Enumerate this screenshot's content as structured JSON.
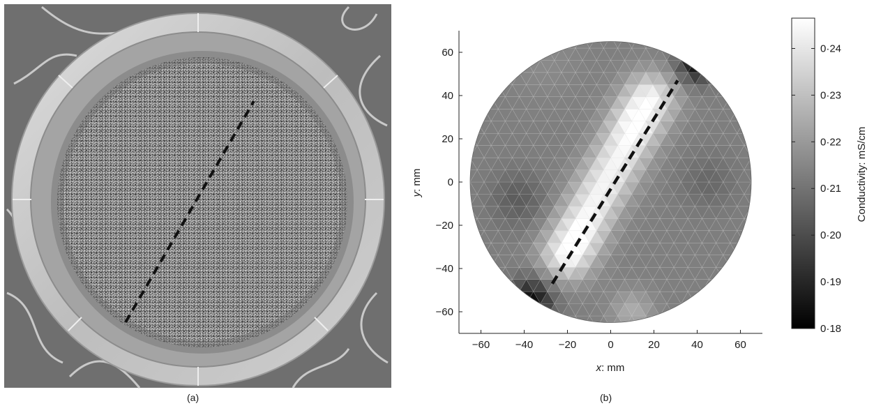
{
  "figure": {
    "panel_a_label": "(a)",
    "panel_b_label": "(b)"
  },
  "chart_data": {
    "type": "heatmap",
    "x": {
      "label_var": "x",
      "label_unit": ": mm",
      "ticks": [
        -60,
        -40,
        -20,
        0,
        20,
        40,
        60
      ],
      "lim": [
        -70,
        70
      ]
    },
    "y": {
      "label_var": "y",
      "label_unit": ": mm",
      "ticks": [
        -60,
        -40,
        -20,
        0,
        20,
        40,
        60
      ],
      "lim": [
        -70,
        70
      ]
    },
    "colorbar": {
      "label": "Conductivity: mS/cm",
      "ticks": [
        "0·18",
        "0·19",
        "0·20",
        "0·21",
        "0·22",
        "0·23",
        "0·24"
      ],
      "tick_values": [
        0.18,
        0.19,
        0.2,
        0.21,
        0.22,
        0.23,
        0.24
      ],
      "range": [
        0.18,
        0.2465
      ],
      "colormap": "gray"
    },
    "domain": {
      "shape": "circle",
      "center": [
        0,
        0
      ],
      "radius": 65
    },
    "crack_line": {
      "from": [
        -27,
        -47
      ],
      "to": [
        31,
        47
      ],
      "style": "dashed",
      "color": "#111111"
    },
    "field": {
      "background": 0.213,
      "features": [
        {
          "kind": "ridge",
          "from": [
            -20,
            -33
          ],
          "to": [
            18,
            38
          ],
          "width": 8.5,
          "amp": 0.031
        },
        {
          "kind": "blob",
          "at": [
            -15,
            -28
          ],
          "sigma": 8,
          "amp": 0.006
        },
        {
          "kind": "blob",
          "at": [
            10,
            30
          ],
          "sigma": 8,
          "amp": 0.006
        },
        {
          "kind": "blob",
          "at": [
            -43,
            -8
          ],
          "sigma": 9,
          "amp": -0.009
        },
        {
          "kind": "blob",
          "at": [
            45,
            0
          ],
          "sigma": 9,
          "amp": -0.006
        },
        {
          "kind": "blob",
          "at": [
            40,
            55
          ],
          "sigma": 6,
          "amp": -0.03
        },
        {
          "kind": "blob",
          "at": [
            -37,
            -55
          ],
          "sigma": 7,
          "amp": -0.03
        },
        {
          "kind": "blob",
          "at": [
            10,
            -60
          ],
          "sigma": 7,
          "amp": 0.012
        },
        {
          "kind": "blob",
          "at": [
            -30,
            55
          ],
          "sigma": 12,
          "amp": 0.003
        }
      ]
    }
  }
}
